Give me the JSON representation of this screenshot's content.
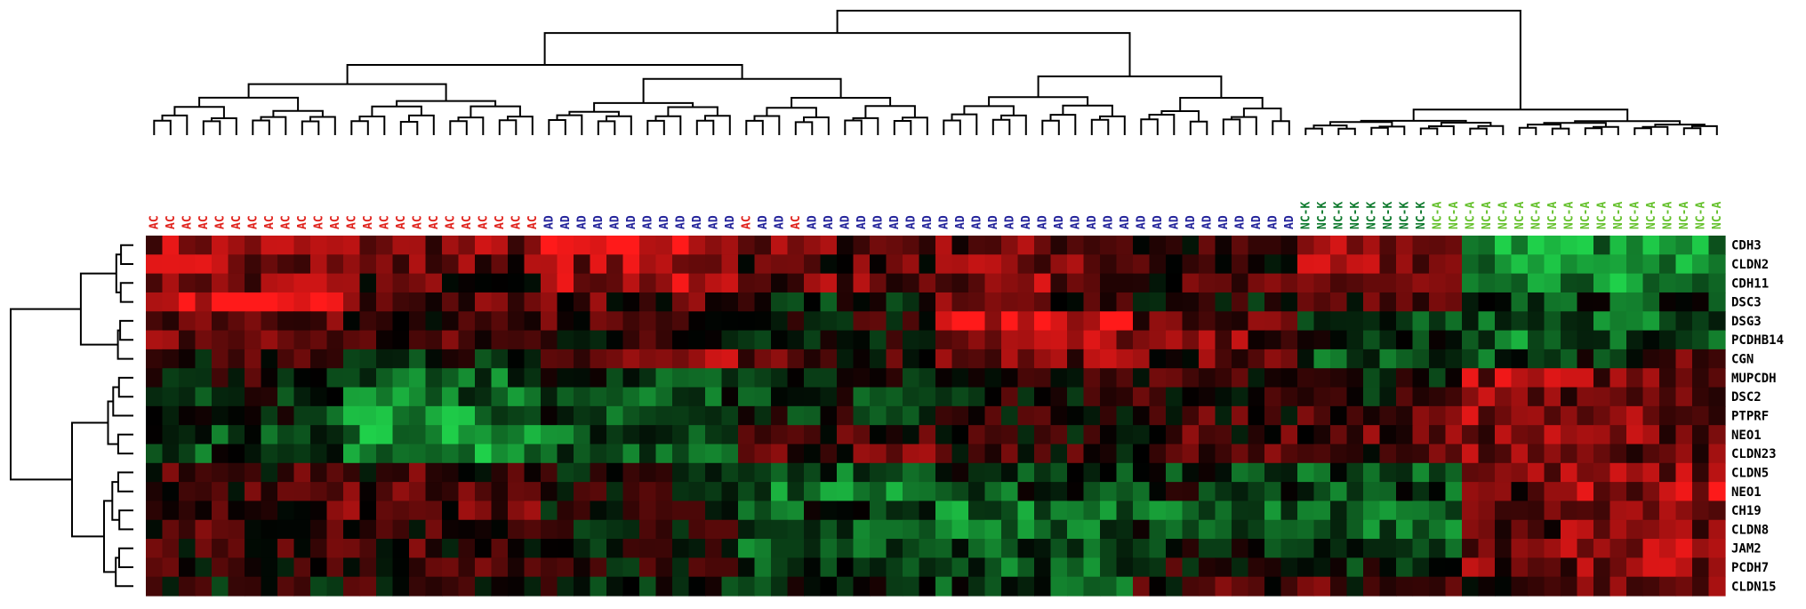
{
  "chart_data": {
    "type": "heatmap",
    "title": "",
    "xlabel": "",
    "ylabel": "",
    "colors": {
      "low": "#1fd04a",
      "mid": "#000000",
      "high": "#ff1a1a",
      "AC": "#e0211b",
      "AD": "#22229a",
      "NC-K": "#0f7a2e",
      "NC-A": "#66c12e"
    },
    "columns": [
      "AC",
      "AC",
      "AC",
      "AC",
      "AC",
      "AC",
      "AC",
      "AC",
      "AC",
      "AC",
      "AC",
      "AC",
      "AC",
      "AC",
      "AC",
      "AC",
      "AC",
      "AC",
      "AC",
      "AC",
      "AC",
      "AC",
      "AC",
      "AC",
      "AD",
      "AD",
      "AD",
      "AD",
      "AD",
      "AD",
      "AD",
      "AD",
      "AD",
      "AD",
      "AD",
      "AD",
      "AC",
      "AD",
      "AD",
      "AC",
      "AD",
      "AD",
      "AD",
      "AD",
      "AD",
      "AD",
      "AD",
      "AD",
      "AD",
      "AD",
      "AD",
      "AD",
      "AD",
      "AD",
      "AD",
      "AD",
      "AD",
      "AD",
      "AD",
      "AD",
      "AD",
      "AD",
      "AD",
      "AD",
      "AD",
      "AD",
      "AD",
      "AD",
      "AD",
      "AD",
      "NC-K",
      "NC-K",
      "NC-K",
      "NC-K",
      "NC-K",
      "NC-K",
      "NC-K",
      "NC-K",
      "NC-A",
      "NC-A",
      "NC-A",
      "NC-A",
      "NC-A",
      "NC-A",
      "NC-A",
      "NC-A",
      "NC-A",
      "NC-A",
      "NC-A",
      "NC-A",
      "NC-A",
      "NC-A",
      "NC-A",
      "NC-A",
      "NC-A",
      "NC-A"
    ],
    "rows": [
      "CDH3",
      "CLDN2",
      "CDH11",
      "DSC3",
      "DSG3",
      "PCDHB14",
      "CGN",
      "MUPCDH",
      "DSC2",
      "PTPRF",
      "NEO1",
      "CLDN23",
      "CLDN5",
      "NEO1",
      "CH19",
      "CLDN8",
      "JAM2",
      "PCDH7",
      "CLDN15"
    ],
    "blocks": [
      [
        0.6,
        0.5,
        0.8,
        0.4,
        0.4,
        0.1,
        0.5,
        -0.8,
        -0.7,
        -0.7
      ],
      [
        0.6,
        0.4,
        0.6,
        0.3,
        0.4,
        0.1,
        0.5,
        -0.7,
        -0.8,
        -0.6
      ],
      [
        0.5,
        0.3,
        0.6,
        0.4,
        0.5,
        0.2,
        0.4,
        -0.8,
        -0.7,
        -0.7
      ],
      [
        0.9,
        0.3,
        0.3,
        -0.1,
        0.3,
        0.0,
        0.2,
        -0.3,
        -0.3,
        -0.3
      ],
      [
        0.5,
        0.0,
        0.3,
        0.1,
        0.9,
        0.3,
        -0.4,
        -0.4,
        -0.4,
        -0.4
      ],
      [
        0.4,
        0.2,
        0.1,
        0.0,
        0.6,
        0.4,
        -0.2,
        -0.5,
        -0.3,
        -0.4
      ],
      [
        0.1,
        -0.1,
        0.5,
        0.2,
        0.5,
        0.3,
        -0.3,
        -0.4,
        -0.2,
        0.2
      ],
      [
        0.0,
        -0.4,
        -0.2,
        -0.1,
        0.0,
        0.1,
        0.0,
        0.6,
        0.5,
        0.5
      ],
      [
        -0.1,
        -0.5,
        -0.3,
        -0.2,
        0.0,
        0.1,
        0.0,
        0.6,
        0.5,
        0.5
      ],
      [
        -0.2,
        -0.6,
        -0.3,
        -0.1,
        0.1,
        0.2,
        0.2,
        0.6,
        0.5,
        0.5
      ],
      [
        -0.3,
        -0.7,
        -0.4,
        0.2,
        0.1,
        0.2,
        0.3,
        0.5,
        0.5,
        0.5
      ],
      [
        -0.3,
        -0.7,
        -0.3,
        0.3,
        0.1,
        0.2,
        0.3,
        0.5,
        0.4,
        0.4
      ],
      [
        0.2,
        0.2,
        -0.1,
        -0.4,
        -0.3,
        -0.2,
        -0.3,
        0.5,
        0.5,
        0.5
      ],
      [
        0.2,
        0.3,
        0.0,
        -0.5,
        -0.3,
        -0.2,
        -0.3,
        0.4,
        0.6,
        0.7
      ],
      [
        0.2,
        0.3,
        0.0,
        -0.3,
        -0.6,
        -0.4,
        -0.4,
        0.4,
        0.6,
        0.6
      ],
      [
        0.2,
        0.2,
        0.0,
        -0.4,
        -0.5,
        -0.3,
        -0.4,
        0.3,
        0.5,
        0.5
      ],
      [
        0.1,
        0.2,
        0.0,
        -0.4,
        -0.4,
        -0.2,
        -0.3,
        0.4,
        0.6,
        0.6
      ],
      [
        0.1,
        0.2,
        0.0,
        -0.3,
        -0.4,
        0.1,
        -0.2,
        0.4,
        0.5,
        0.5
      ],
      [
        0.0,
        0.1,
        -0.1,
        -0.2,
        -0.3,
        0.2,
        0.2,
        0.3,
        0.4,
        0.4
      ]
    ],
    "value_range": [
      -1,
      1
    ],
    "grid": false,
    "legend": "none"
  }
}
